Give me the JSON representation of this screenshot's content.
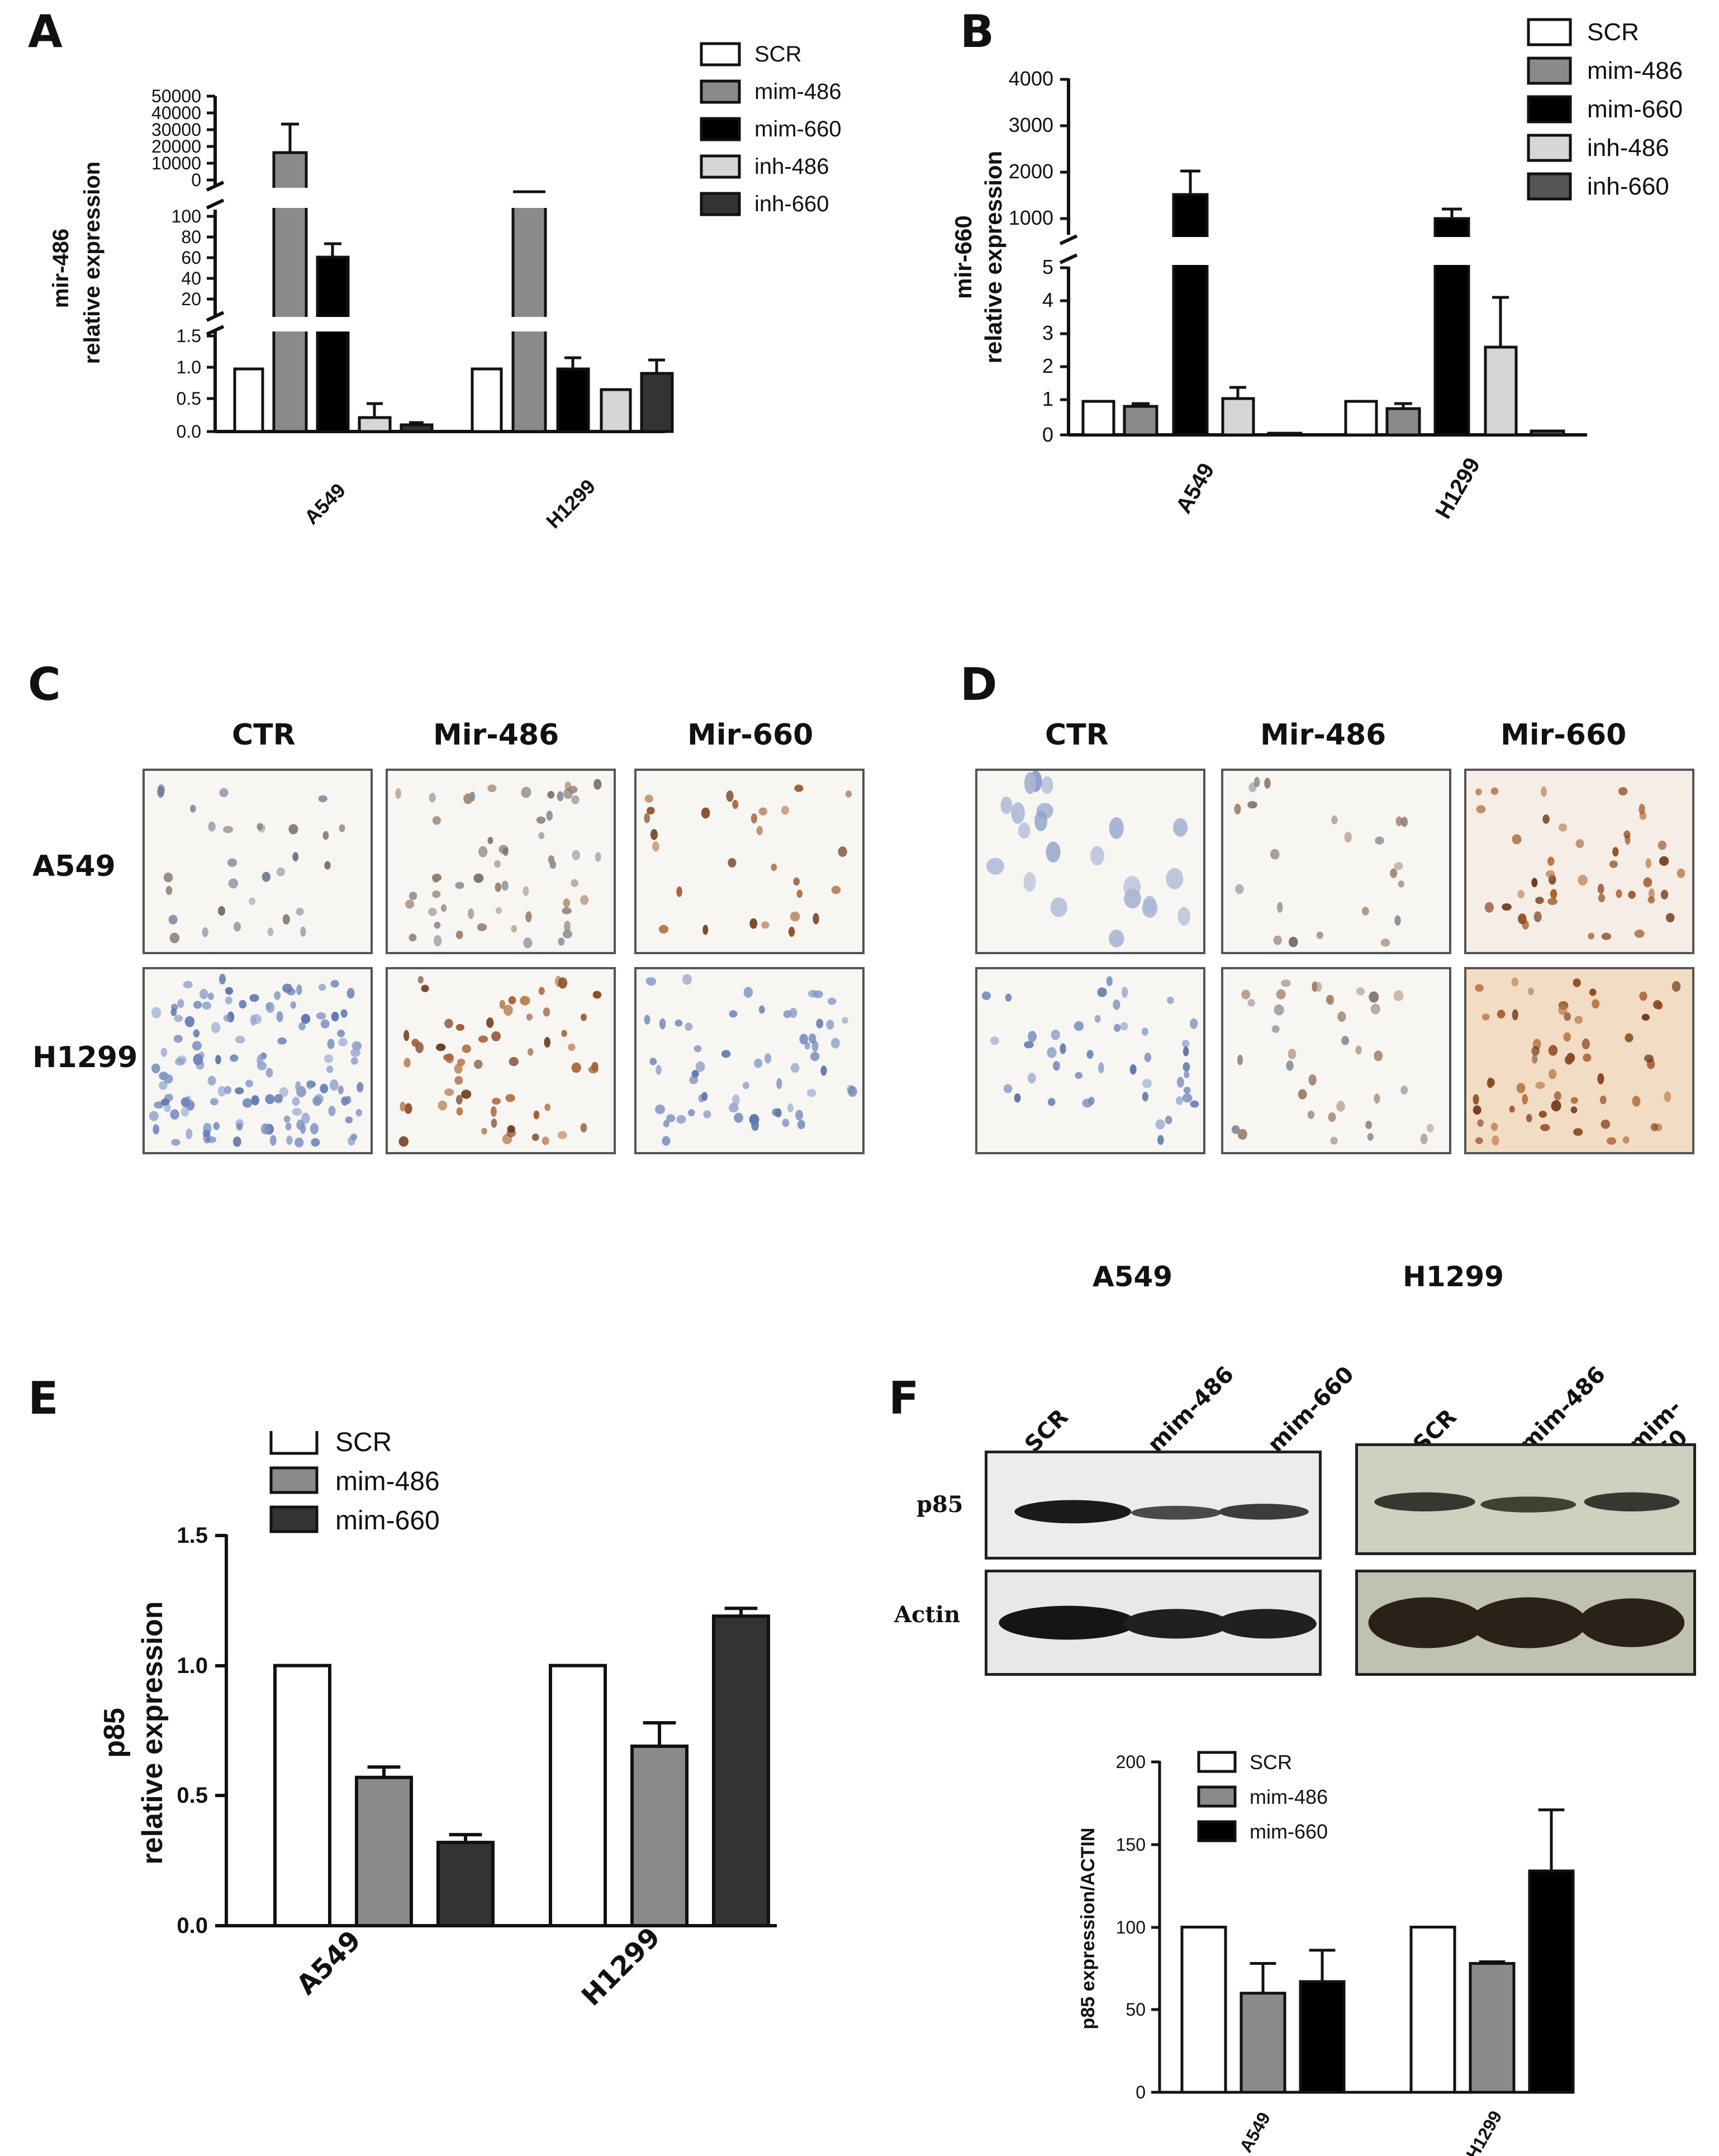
{
  "panels": {
    "A": "A",
    "B": "B",
    "C": "C",
    "D": "D",
    "E": "E",
    "F": "F"
  },
  "panel_a": {
    "ylabel_line1": "mir-486",
    "ylabel_line2": "relative expression",
    "categories": [
      "A549",
      "H1299"
    ],
    "legend": [
      {
        "name": "SCR",
        "color": "#ffffff"
      },
      {
        "name": "mim-486",
        "color": "#8a8a8a"
      },
      {
        "name": "mim-660",
        "color": "#000000"
      },
      {
        "name": "inh-486",
        "color": "#d6d6d6"
      },
      {
        "name": "inh-660",
        "color": "#333333"
      }
    ],
    "ticks_top": [
      "50000",
      "40000",
      "30000",
      "20000",
      "10000",
      "0"
    ],
    "ticks_mid": [
      "100",
      "80",
      "60",
      "40",
      "20"
    ],
    "ticks_low": [
      "1.5",
      "1.0",
      "0.5",
      "0.0"
    ]
  },
  "panel_b": {
    "ylabel_line1": "mir-660",
    "ylabel_line2": "relative expression",
    "categories": [
      "A549",
      "H1299"
    ],
    "legend": [
      {
        "name": "SCR",
        "color": "#ffffff"
      },
      {
        "name": "mim-486",
        "color": "#8a8a8a"
      },
      {
        "name": "mim-660",
        "color": "#000000"
      },
      {
        "name": "inh-486",
        "color": "#d6d6d6"
      },
      {
        "name": "inh-660",
        "color": "#555555"
      }
    ],
    "ticks_top": [
      "4000",
      "3000",
      "2000",
      "1000"
    ],
    "ticks_low": [
      "5",
      "4",
      "3",
      "2",
      "1",
      "0"
    ]
  },
  "panel_c": {
    "columns": [
      "CTR",
      "Mir-486",
      "Mir-660"
    ],
    "rows": [
      "A549",
      "H1299"
    ]
  },
  "panel_d": {
    "columns": [
      "CTR",
      "Mir-486",
      "Mir-660"
    ]
  },
  "panel_e": {
    "ylabel_line1": "p85",
    "ylabel_line2": "relative expression",
    "ticks": [
      "1.5",
      "1.0",
      "0.5",
      "0.0"
    ],
    "legend": [
      "SCR",
      "mim-486",
      "mim-660"
    ]
  },
  "panel_f": {
    "blot_headers": [
      "A549",
      "H1299"
    ],
    "lanes": [
      "SCR",
      "mim-486",
      "mim-660"
    ],
    "blot_rows": [
      "p85",
      "Actin"
    ],
    "ylabel": "p85 expression/ACTIN",
    "ticks": [
      "200",
      "150",
      "100",
      "50",
      "0"
    ],
    "legend": [
      "SCR",
      "mim-486",
      "mim-660"
    ]
  },
  "chart_data": [
    {
      "id": "A",
      "type": "bar",
      "categories": [
        "A549",
        "H1299"
      ],
      "ylabel": "mir-486 relative expression",
      "axis_segments": [
        [
          0,
          1.5
        ],
        [
          0,
          100
        ],
        [
          0,
          50000
        ]
      ],
      "series": [
        {
          "name": "SCR",
          "values": [
            1.0,
            1.0
          ],
          "errors": [
            0,
            0
          ]
        },
        {
          "name": "mim-486",
          "values": [
            22000,
            32000
          ],
          "errors": [
            14000,
            0
          ]
        },
        {
          "name": "mim-660",
          "values": [
            63,
            1.0
          ],
          "errors": [
            12,
            0.2
          ]
        },
        {
          "name": "inh-486",
          "values": [
            0.22,
            0.68
          ],
          "errors": [
            0.2,
            0.05
          ]
        },
        {
          "name": "inh-660",
          "values": [
            0.1,
            0.93
          ],
          "errors": [
            0.03,
            0.22
          ]
        }
      ]
    },
    {
      "id": "B",
      "type": "bar",
      "categories": [
        "A549",
        "H1299"
      ],
      "ylabel": "mir-660 relative expression",
      "axis_segments": [
        [
          0,
          5
        ],
        [
          0,
          4000
        ]
      ],
      "series": [
        {
          "name": "SCR",
          "values": [
            1.0,
            1.0
          ],
          "errors": [
            0,
            0
          ]
        },
        {
          "name": "mim-486",
          "values": [
            0.85,
            0.78
          ],
          "errors": [
            0.08,
            0.15
          ]
        },
        {
          "name": "mim-660",
          "values": [
            1500,
            950
          ],
          "errors": [
            500,
            200
          ]
        },
        {
          "name": "inh-486",
          "values": [
            1.1,
            2.65
          ],
          "errors": [
            0.33,
            1.5
          ]
        },
        {
          "name": "inh-660",
          "values": [
            0.05,
            0.12
          ],
          "errors": [
            0.02,
            0.03
          ]
        }
      ]
    },
    {
      "id": "E",
      "type": "bar",
      "categories": [
        "A549",
        "H1299"
      ],
      "ylabel": "p85 relative expression",
      "ylim": [
        0,
        1.5
      ],
      "series": [
        {
          "name": "SCR",
          "values": [
            1.0,
            1.0
          ],
          "errors": [
            0,
            0
          ]
        },
        {
          "name": "mim-486",
          "values": [
            0.57,
            0.69
          ],
          "errors": [
            0.04,
            0.09
          ]
        },
        {
          "name": "mim-660",
          "values": [
            0.32,
            1.19
          ],
          "errors": [
            0.03,
            0.03
          ]
        }
      ]
    },
    {
      "id": "F",
      "type": "bar",
      "categories": [
        "A549",
        "H1299"
      ],
      "ylabel": "p85 expression/ACTIN",
      "ylim": [
        0,
        200
      ],
      "series": [
        {
          "name": "SCR",
          "values": [
            100,
            100
          ],
          "errors": [
            0,
            0
          ]
        },
        {
          "name": "mim-486",
          "values": [
            60,
            78
          ],
          "errors": [
            18,
            1
          ]
        },
        {
          "name": "mim-660",
          "values": [
            67,
            134
          ],
          "errors": [
            19,
            37
          ]
        }
      ]
    }
  ]
}
